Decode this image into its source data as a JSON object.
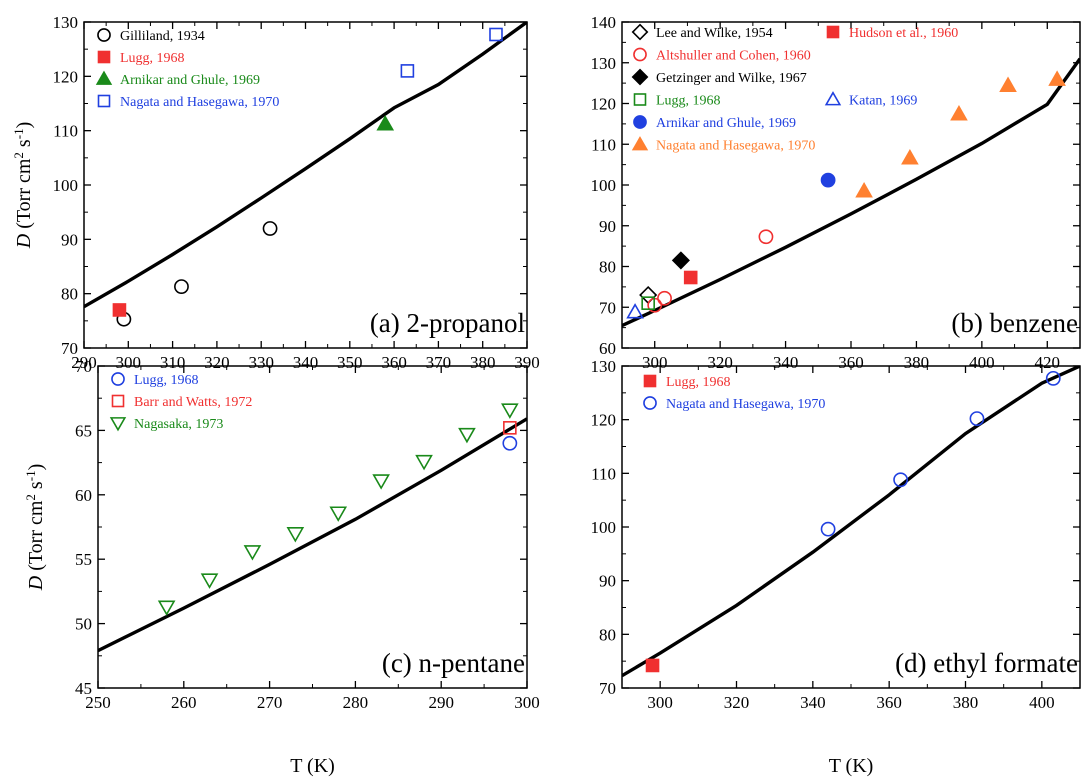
{
  "colors": {
    "black": "#000000",
    "red": "#f03030",
    "green": "#1a8a1a",
    "blue": "#2040e0",
    "orange": "#ff8030"
  },
  "chart_data": [
    {
      "type": "scatter",
      "panel_label": "(a) 2-propanol",
      "xlabel": "",
      "ylabel": "D (Torr cm² s⁻¹)",
      "xlim": [
        290,
        390
      ],
      "ylim": [
        70,
        130
      ],
      "xticks": [
        290,
        300,
        310,
        320,
        330,
        340,
        350,
        360,
        370,
        380,
        390
      ],
      "yticks": [
        70,
        80,
        90,
        100,
        110,
        120,
        130
      ],
      "grid": false,
      "legend_placement": "top-left",
      "fit_line": {
        "x": [
          290,
          300,
          310,
          320,
          330,
          340,
          350,
          360,
          370,
          380,
          390
        ],
        "y": [
          77.6,
          82.3,
          87.2,
          92.3,
          97.6,
          103.0,
          108.5,
          114.2,
          118.5,
          124.1,
          130.0
        ]
      },
      "series": [
        {
          "name": "Gilliland, 1934",
          "marker": "circle-open",
          "color": "black",
          "x": [
            299,
            312,
            332
          ],
          "y": [
            75.3,
            81.3,
            92.0
          ]
        },
        {
          "name": "Lugg, 1968",
          "marker": "square-filled",
          "color": "red",
          "x": [
            298
          ],
          "y": [
            77.0
          ]
        },
        {
          "name": "Arnikar and Ghule, 1969",
          "marker": "triangle-up-filled",
          "color": "green",
          "x": [
            358
          ],
          "y": [
            111.2
          ]
        },
        {
          "name": "Nagata and Hasegawa, 1970",
          "marker": "square-open",
          "color": "blue",
          "x": [
            363,
            383
          ],
          "y": [
            121.0,
            127.7
          ]
        }
      ]
    },
    {
      "type": "scatter",
      "panel_label": "(b) benzene",
      "xlabel": "",
      "ylabel": "",
      "xlim": [
        290,
        430
      ],
      "ylim": [
        60,
        140
      ],
      "xticks": [
        300,
        320,
        340,
        360,
        380,
        400,
        420
      ],
      "yticks": [
        60,
        70,
        80,
        90,
        100,
        110,
        120,
        130,
        140
      ],
      "grid": false,
      "legend_placement": "top-left",
      "fit_line": {
        "x": [
          290,
          300,
          320,
          340,
          360,
          380,
          400,
          420,
          430
        ],
        "y": [
          65.5,
          69.2,
          76.8,
          84.7,
          92.9,
          101.4,
          110.2,
          119.8,
          131.0
        ]
      },
      "series": [
        {
          "name": "Lee and Wilke, 1954",
          "marker": "diamond-open",
          "color": "black",
          "x": [
            298
          ],
          "y": [
            73.0
          ]
        },
        {
          "name": "Hudson et al., 1960",
          "marker": "square-filled",
          "color": "red",
          "x": [
            311
          ],
          "y": [
            77.3
          ]
        },
        {
          "name": "Altshuller and Cohen, 1960",
          "marker": "circle-open",
          "color": "red",
          "x": [
            300,
            303,
            334
          ],
          "y": [
            70.5,
            72.2,
            87.3
          ]
        },
        {
          "name": "Getzinger and Wilke, 1967",
          "marker": "diamond-filled",
          "color": "black",
          "x": [
            308
          ],
          "y": [
            81.5
          ]
        },
        {
          "name": "Lugg, 1968",
          "marker": "square-open",
          "color": "green",
          "x": [
            298
          ],
          "y": [
            71.0
          ]
        },
        {
          "name": "Katan, 1969",
          "marker": "triangle-up-open",
          "color": "blue",
          "x": [
            294
          ],
          "y": [
            68.8
          ]
        },
        {
          "name": "Arnikar and Ghule, 1969",
          "marker": "circle-filled",
          "color": "blue",
          "x": [
            353
          ],
          "y": [
            101.2
          ]
        },
        {
          "name": "Nagata and Hasegawa, 1970",
          "marker": "triangle-up-filled",
          "color": "orange",
          "x": [
            364,
            378,
            393,
            408,
            423
          ],
          "y": [
            98.5,
            106.6,
            117.4,
            124.4,
            125.9
          ]
        }
      ]
    },
    {
      "type": "scatter",
      "panel_label": "(c) n-pentane",
      "xlabel": "T (K)",
      "ylabel": "D (Torr cm² s⁻¹)",
      "xlim": [
        250,
        300
      ],
      "ylim": [
        45,
        70
      ],
      "xticks": [
        250,
        260,
        270,
        280,
        290,
        300
      ],
      "yticks": [
        45,
        50,
        55,
        60,
        65,
        70
      ],
      "grid": false,
      "legend_placement": "top-left",
      "fit_line": {
        "x": [
          250,
          260,
          270,
          280,
          290,
          300
        ],
        "y": [
          47.9,
          51.2,
          54.6,
          58.1,
          61.9,
          65.9
        ]
      },
      "series": [
        {
          "name": "Lugg, 1968",
          "marker": "circle-open",
          "color": "blue",
          "x": [
            298
          ],
          "y": [
            64.0
          ]
        },
        {
          "name": "Barr and Watts, 1972",
          "marker": "square-open",
          "color": "red",
          "x": [
            298
          ],
          "y": [
            65.2
          ]
        },
        {
          "name": "Nagasaka, 1973",
          "marker": "triangle-down-open",
          "color": "green",
          "x": [
            258,
            263,
            268,
            273,
            278,
            283,
            288,
            293,
            298
          ],
          "y": [
            51.3,
            53.4,
            55.6,
            57.0,
            58.6,
            61.1,
            62.6,
            64.7,
            66.6
          ]
        }
      ]
    },
    {
      "type": "scatter",
      "panel_label": "(d) ethyl formate",
      "xlabel": "T (K)",
      "ylabel": "",
      "xlim": [
        290,
        410
      ],
      "ylim": [
        70,
        130
      ],
      "xticks": [
        300,
        320,
        340,
        360,
        380,
        400
      ],
      "yticks": [
        70,
        80,
        90,
        100,
        110,
        120,
        130
      ],
      "grid": false,
      "legend_placement": "top-left",
      "fit_line": {
        "x": [
          290,
          300,
          320,
          340,
          360,
          380,
          400,
          410
        ],
        "y": [
          72.3,
          76.5,
          85.4,
          95.3,
          106.0,
          117.4,
          126.8,
          130.0
        ]
      },
      "series": [
        {
          "name": "Lugg, 1968",
          "marker": "square-filled",
          "color": "red",
          "x": [
            298
          ],
          "y": [
            74.2
          ]
        },
        {
          "name": "Nagata and Hasegawa, 1970",
          "marker": "circle-open",
          "color": "blue",
          "x": [
            344,
            363,
            383,
            403
          ],
          "y": [
            99.6,
            108.8,
            120.2,
            127.7
          ]
        }
      ]
    }
  ]
}
